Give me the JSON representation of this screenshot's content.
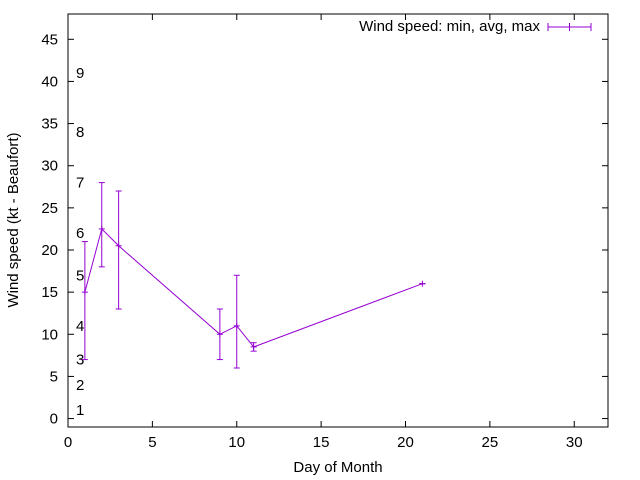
{
  "chart_data": {
    "type": "line",
    "title": "",
    "xlabel": "Day of Month",
    "ylabel": "Wind speed (kt - Beaufort)",
    "xlim": [
      0,
      32
    ],
    "ylim": [
      -1,
      48
    ],
    "xticks": [
      0,
      5,
      10,
      15,
      20,
      25,
      30
    ],
    "yticks": [
      0,
      5,
      10,
      15,
      20,
      25,
      30,
      35,
      40,
      45
    ],
    "grid": false,
    "legend_position": "top-right",
    "series": [
      {
        "name": "Wind speed: min, avg, max",
        "color": "#9400d3",
        "points": [
          {
            "x": 1,
            "y": 15,
            "ymin": 7,
            "ymax": 21
          },
          {
            "x": 2,
            "y": 22.5,
            "ymin": 18,
            "ymax": 28
          },
          {
            "x": 3,
            "y": 20.5,
            "ymin": 13,
            "ymax": 27
          },
          {
            "x": 9,
            "y": 10,
            "ymin": 7,
            "ymax": 13
          },
          {
            "x": 10,
            "y": 11,
            "ymin": 6,
            "ymax": 17
          },
          {
            "x": 11,
            "y": 8.5,
            "ymin": 8,
            "ymax": 9
          },
          {
            "x": 21,
            "y": 16,
            "ymin": 16,
            "ymax": 16
          }
        ]
      }
    ],
    "beaufort_annotations": [
      {
        "label": "1",
        "y": 1
      },
      {
        "label": "2",
        "y": 4
      },
      {
        "label": "3",
        "y": 7
      },
      {
        "label": "4",
        "y": 11
      },
      {
        "label": "5",
        "y": 17
      },
      {
        "label": "6",
        "y": 22
      },
      {
        "label": "7",
        "y": 28
      },
      {
        "label": "8",
        "y": 34
      },
      {
        "label": "9",
        "y": 41
      }
    ]
  }
}
